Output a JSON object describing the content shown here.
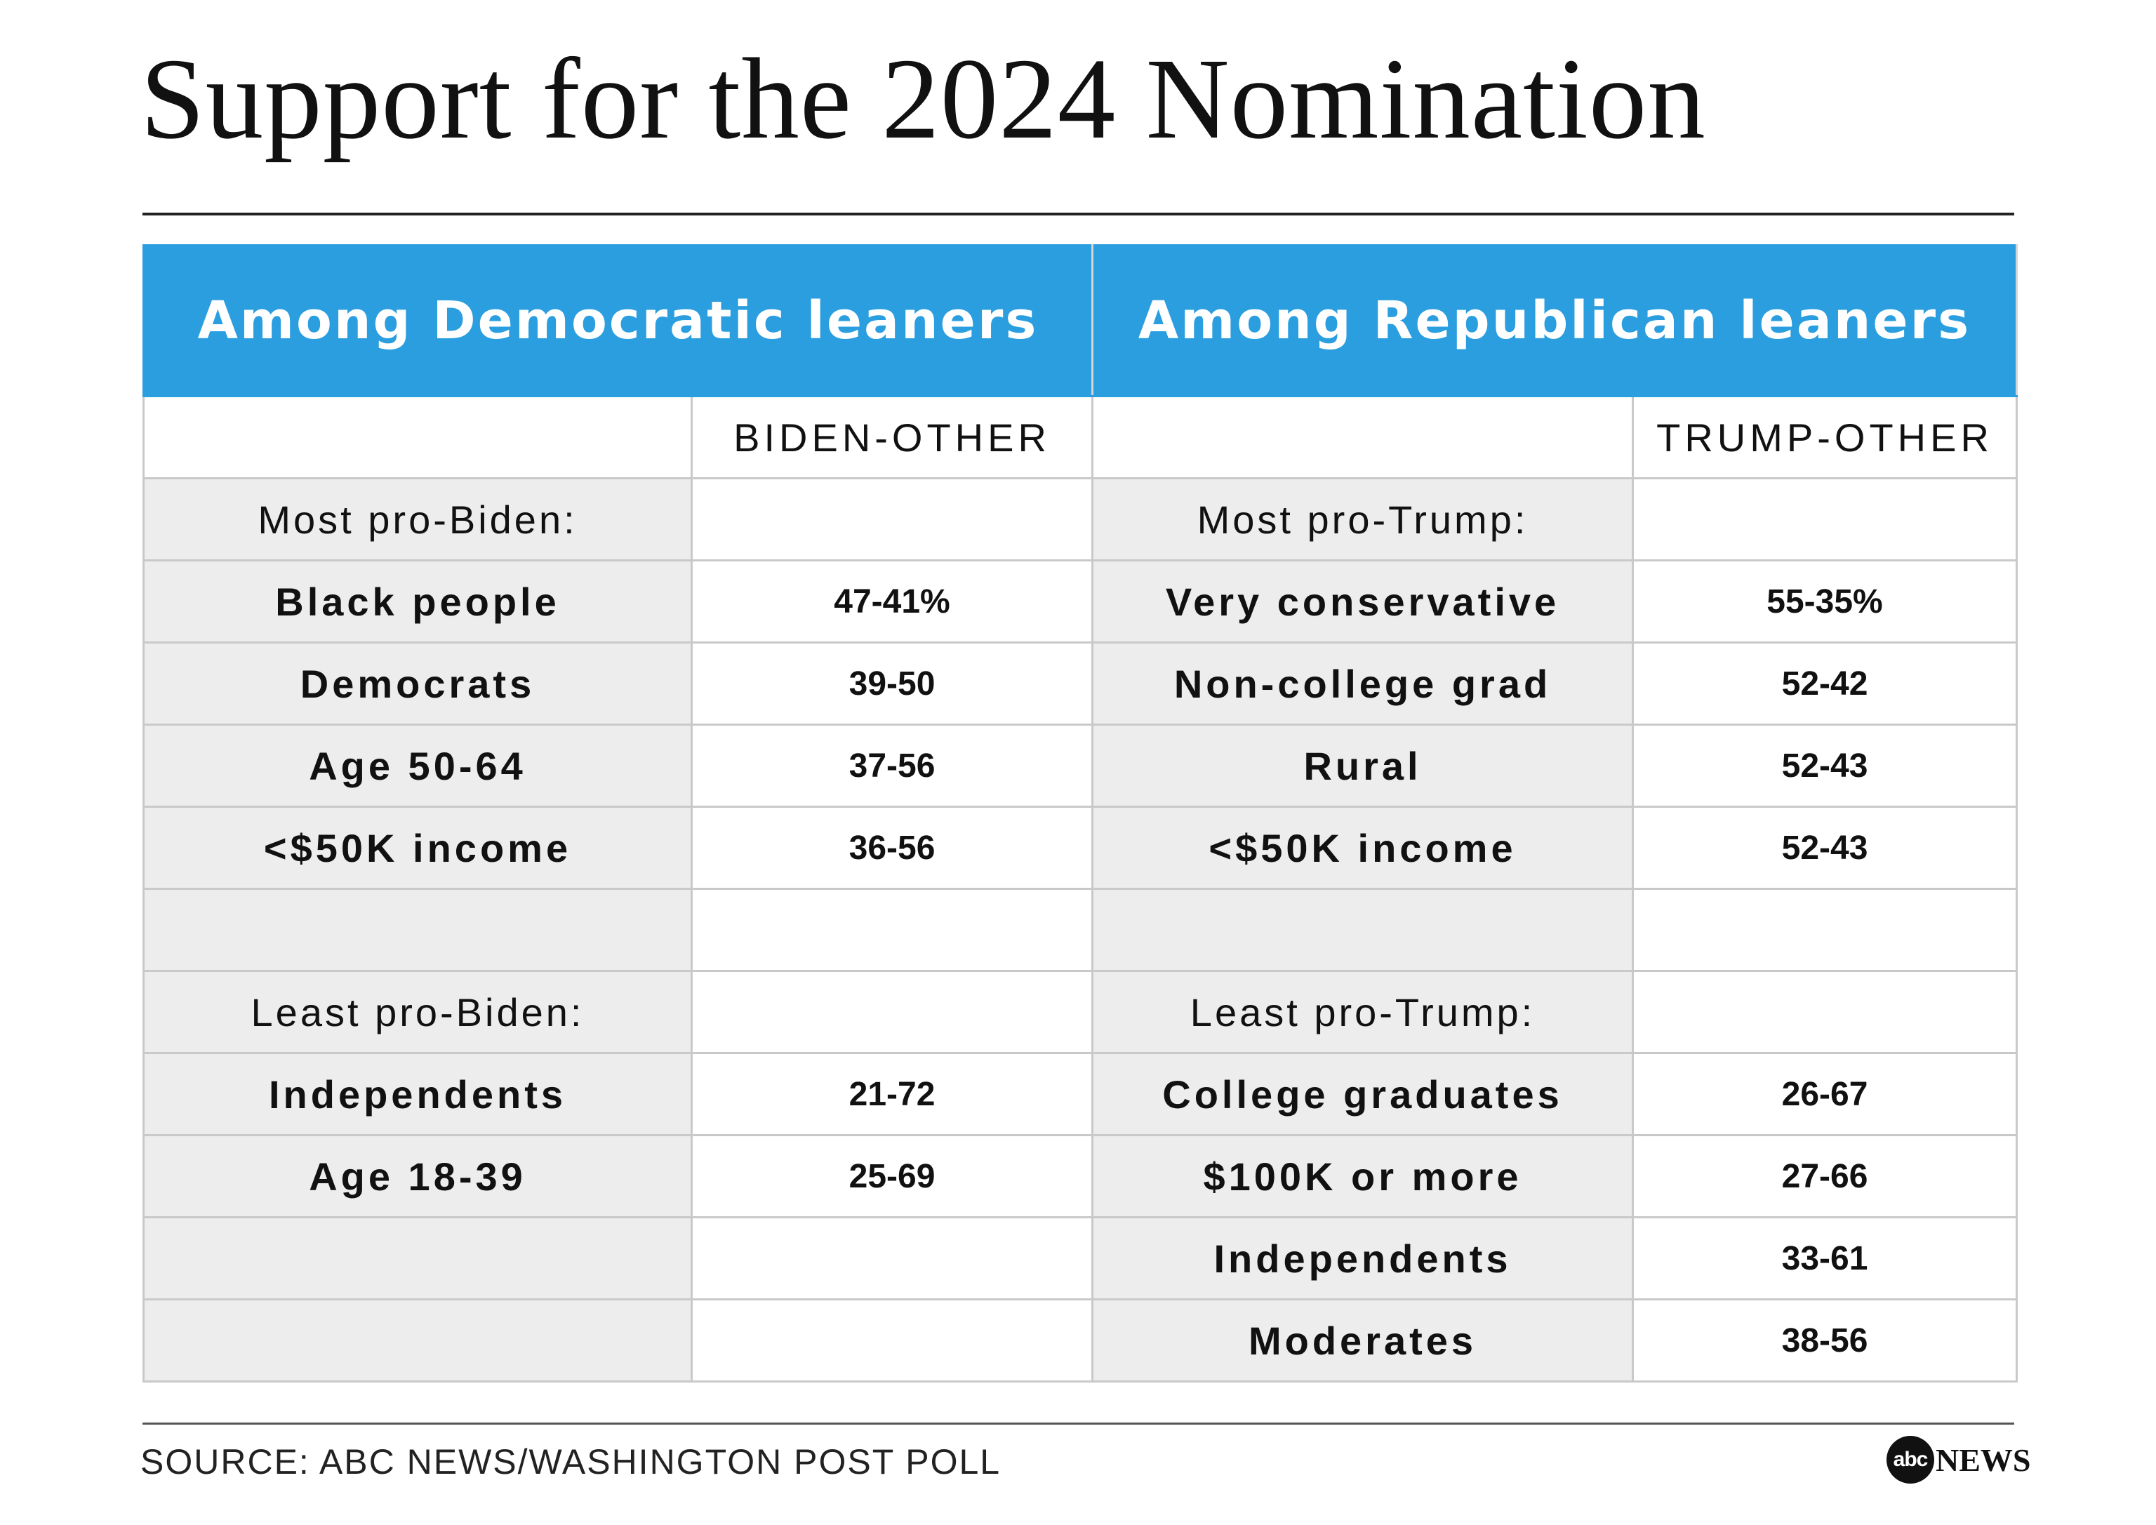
{
  "title": "Support for the 2024 Nomination",
  "chart_data": {
    "type": "table",
    "header": {
      "left_group": "Among Democratic leaners",
      "right_group": "Among Republican leaners",
      "left_metric": "BIDEN-OTHER",
      "right_metric": "TRUMP-OTHER"
    },
    "rows": [
      {
        "kind": "section",
        "left": "Most pro-Biden:",
        "left_val": "",
        "right": "Most pro-Trump:",
        "right_val": ""
      },
      {
        "kind": "item",
        "left": "Black people",
        "left_val": "47-41%",
        "right": "Very conservative",
        "right_val": "55-35%"
      },
      {
        "kind": "item",
        "left": "Democrats",
        "left_val": "39-50",
        "right": "Non-college grad",
        "right_val": "52-42"
      },
      {
        "kind": "item",
        "left": "Age 50-64",
        "left_val": "37-56",
        "right": "Rural",
        "right_val": "52-43"
      },
      {
        "kind": "item",
        "left": "<$50K income",
        "left_val": "36-56",
        "right": "<$50K income",
        "right_val": "52-43"
      },
      {
        "kind": "blank",
        "left": "",
        "left_val": "",
        "right": "",
        "right_val": ""
      },
      {
        "kind": "section",
        "left": "Least pro-Biden:",
        "left_val": "",
        "right": "Least pro-Trump:",
        "right_val": ""
      },
      {
        "kind": "item",
        "left": "Independents",
        "left_val": "21-72",
        "right": "College graduates",
        "right_val": "26-67"
      },
      {
        "kind": "item",
        "left": "Age 18-39",
        "left_val": "25-69",
        "right": "$100K or more",
        "right_val": "27-66"
      },
      {
        "kind": "item",
        "left": "",
        "left_val": "",
        "right": "Independents",
        "right_val": "33-61"
      },
      {
        "kind": "item",
        "left": "",
        "left_val": "",
        "right": "Moderates",
        "right_val": "38-56"
      }
    ]
  },
  "source": "SOURCE: ABC NEWS/WASHINGTON POST POLL",
  "logo": {
    "mark": "abc",
    "text": "NEWS"
  },
  "colors": {
    "header_bg": "#2b9ee0",
    "label_bg": "#ededed",
    "grid": "#c9c9c9"
  }
}
